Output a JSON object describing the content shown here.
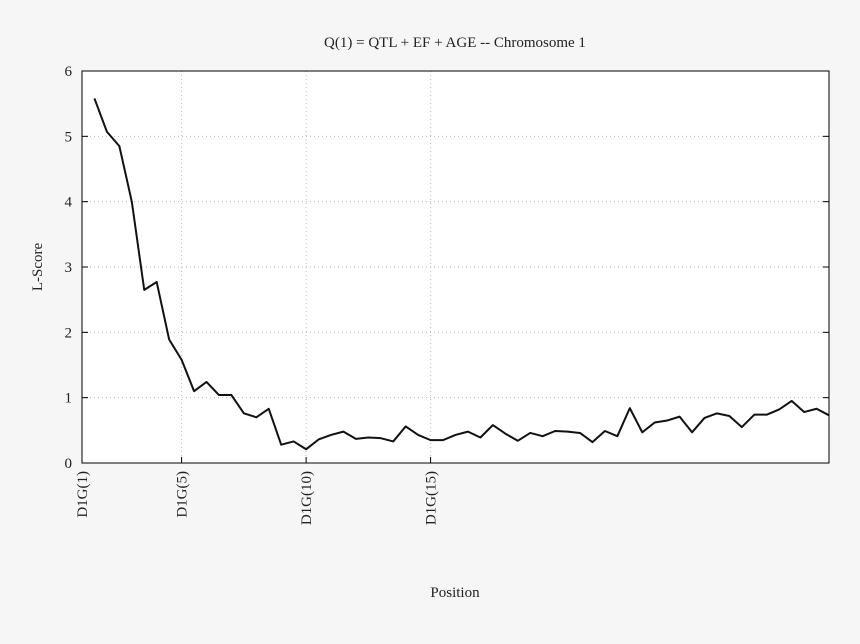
{
  "chart_data": {
    "type": "line",
    "title": "Q(1) = QTL + EF + AGE -- Chromosome 1",
    "x_label": "Position",
    "y_label": "L-Score",
    "xlim": [
      1,
      31
    ],
    "ylim": [
      0,
      6
    ],
    "xticks": [
      {
        "value": 1,
        "label": "D1G(1)"
      },
      {
        "value": 5,
        "label": "D1G(5)"
      },
      {
        "value": 10,
        "label": "D1G(10)"
      },
      {
        "value": 15,
        "label": "D1G(15)"
      }
    ],
    "yticks": [
      0,
      1,
      2,
      3,
      4,
      5,
      6
    ],
    "grid": true,
    "color": "#111111",
    "x": [
      1.5,
      2,
      2.5,
      3,
      3.5,
      4,
      4.5,
      5,
      5.5,
      6,
      6.5,
      7,
      7.5,
      8,
      8.5,
      9,
      9.5,
      10,
      10.5,
      11,
      11.5,
      12,
      12.5,
      13,
      13.5,
      14,
      14.5,
      15,
      15.5,
      16,
      16.5,
      17,
      17.5,
      18,
      18.5,
      19,
      19.5,
      20,
      20.5,
      21,
      21.5,
      22,
      22.5,
      23,
      23.5,
      24,
      24.5,
      25,
      25.5,
      26,
      26.5,
      27,
      27.5,
      28,
      28.5,
      29,
      29.5,
      30,
      30.5,
      31
    ],
    "values": [
      5.58,
      5.07,
      4.85,
      4.0,
      2.65,
      2.77,
      1.89,
      1.58,
      1.1,
      1.24,
      1.04,
      1.04,
      0.76,
      0.7,
      0.83,
      0.28,
      0.33,
      0.21,
      0.36,
      0.43,
      0.48,
      0.37,
      0.39,
      0.38,
      0.33,
      0.56,
      0.43,
      0.35,
      0.35,
      0.43,
      0.48,
      0.39,
      0.58,
      0.45,
      0.34,
      0.46,
      0.41,
      0.49,
      0.48,
      0.46,
      0.32,
      0.49,
      0.41,
      0.84,
      0.47,
      0.62,
      0.65,
      0.71,
      0.47,
      0.69,
      0.76,
      0.72,
      0.55,
      0.74,
      0.74,
      0.82,
      0.95,
      0.78,
      0.83,
      0.73
    ]
  }
}
